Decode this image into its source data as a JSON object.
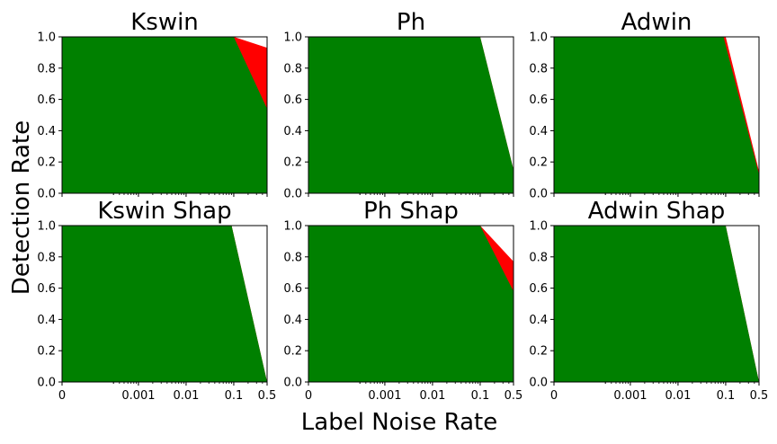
{
  "figure": {
    "ylabel": "Detection Rate",
    "xlabel": "Label Noise Rate"
  },
  "colors": {
    "green": "#008000",
    "red": "#ff0000",
    "background": "#ffffff",
    "axis": "#000000"
  },
  "chart_data": [
    {
      "type": "area",
      "title": "Kswin",
      "x_ticks": [
        "0",
        "0.001",
        "0.01",
        "0.1",
        "0.5"
      ],
      "ylim": [
        0,
        1
      ],
      "y_ticks": [
        "0.0",
        "0.2",
        "0.4",
        "0.6",
        "0.8",
        "1.0"
      ],
      "show_x_tick_labels": false,
      "series": [
        {
          "name": "red",
          "color": "#ff0000",
          "x": [
            "0",
            "0.1",
            "0.5"
          ],
          "values": [
            1.0,
            1.0,
            0.93
          ]
        },
        {
          "name": "green",
          "color": "#008000",
          "x": [
            "0",
            "0.1",
            "0.5"
          ],
          "values": [
            1.0,
            1.0,
            0.54
          ]
        }
      ]
    },
    {
      "type": "area",
      "title": "Ph",
      "x_ticks": [
        "0",
        "0.001",
        "0.01",
        "0.1",
        "0.5"
      ],
      "ylim": [
        0,
        1
      ],
      "y_ticks": [
        "0.0",
        "0.2",
        "0.4",
        "0.6",
        "0.8",
        "1.0"
      ],
      "show_x_tick_labels": false,
      "series": [
        {
          "name": "red",
          "color": "#ff0000",
          "x": [
            "0",
            "0.1",
            "0.5"
          ],
          "values": [
            1.0,
            1.0,
            0.15
          ]
        },
        {
          "name": "green",
          "color": "#008000",
          "x": [
            "0",
            "0.1",
            "0.5"
          ],
          "values": [
            1.0,
            1.0,
            0.15
          ]
        }
      ]
    },
    {
      "type": "area",
      "title": "Adwin",
      "x_ticks": [
        "0",
        "0.001",
        "0.01",
        "0.1",
        "0.5"
      ],
      "ylim": [
        0,
        1
      ],
      "y_ticks": [
        "0.0",
        "0.2",
        "0.4",
        "0.6",
        "0.8",
        "1.0"
      ],
      "show_x_tick_labels": false,
      "series": [
        {
          "name": "red",
          "color": "#ff0000",
          "x": [
            "0",
            "0.1",
            "0.5"
          ],
          "values": [
            1.0,
            1.0,
            0.14
          ]
        },
        {
          "name": "green",
          "color": "#008000",
          "x": [
            "0",
            "0.09",
            "0.5"
          ],
          "values": [
            1.0,
            1.0,
            0.12
          ]
        }
      ]
    },
    {
      "type": "area",
      "title": "Kswin Shap",
      "x_ticks": [
        "0",
        "0.001",
        "0.01",
        "0.1",
        "0.5"
      ],
      "ylim": [
        0,
        1
      ],
      "y_ticks": [
        "0.0",
        "0.2",
        "0.4",
        "0.6",
        "0.8",
        "1.0"
      ],
      "show_x_tick_labels": true,
      "series": [
        {
          "name": "red",
          "color": "#ff0000",
          "x": [
            "0",
            "0.09",
            "0.5"
          ],
          "values": [
            1.0,
            1.0,
            0.0
          ]
        },
        {
          "name": "green",
          "color": "#008000",
          "x": [
            "0",
            "0.09",
            "0.5"
          ],
          "values": [
            1.0,
            1.0,
            0.0
          ]
        }
      ]
    },
    {
      "type": "area",
      "title": "Ph Shap",
      "x_ticks": [
        "0",
        "0.001",
        "0.01",
        "0.1",
        "0.5"
      ],
      "ylim": [
        0,
        1
      ],
      "y_ticks": [
        "0.0",
        "0.2",
        "0.4",
        "0.6",
        "0.8",
        "1.0"
      ],
      "show_x_tick_labels": true,
      "series": [
        {
          "name": "red",
          "color": "#ff0000",
          "x": [
            "0",
            "0.1",
            "0.5"
          ],
          "values": [
            1.0,
            1.0,
            0.77
          ]
        },
        {
          "name": "green",
          "color": "#008000",
          "x": [
            "0",
            "0.1",
            "0.5"
          ],
          "values": [
            1.0,
            1.0,
            0.58
          ]
        }
      ]
    },
    {
      "type": "area",
      "title": "Adwin Shap",
      "x_ticks": [
        "0",
        "0.001",
        "0.01",
        "0.1",
        "0.5"
      ],
      "ylim": [
        0,
        1
      ],
      "y_ticks": [
        "0.0",
        "0.2",
        "0.4",
        "0.6",
        "0.8",
        "1.0"
      ],
      "show_x_tick_labels": true,
      "series": [
        {
          "name": "red",
          "color": "#ff0000",
          "x": [
            "0",
            "0.1",
            "0.5"
          ],
          "values": [
            1.0,
            1.0,
            0.0
          ]
        },
        {
          "name": "green",
          "color": "#008000",
          "x": [
            "0",
            "0.1",
            "0.5"
          ],
          "values": [
            1.0,
            1.0,
            0.0
          ]
        }
      ]
    }
  ]
}
